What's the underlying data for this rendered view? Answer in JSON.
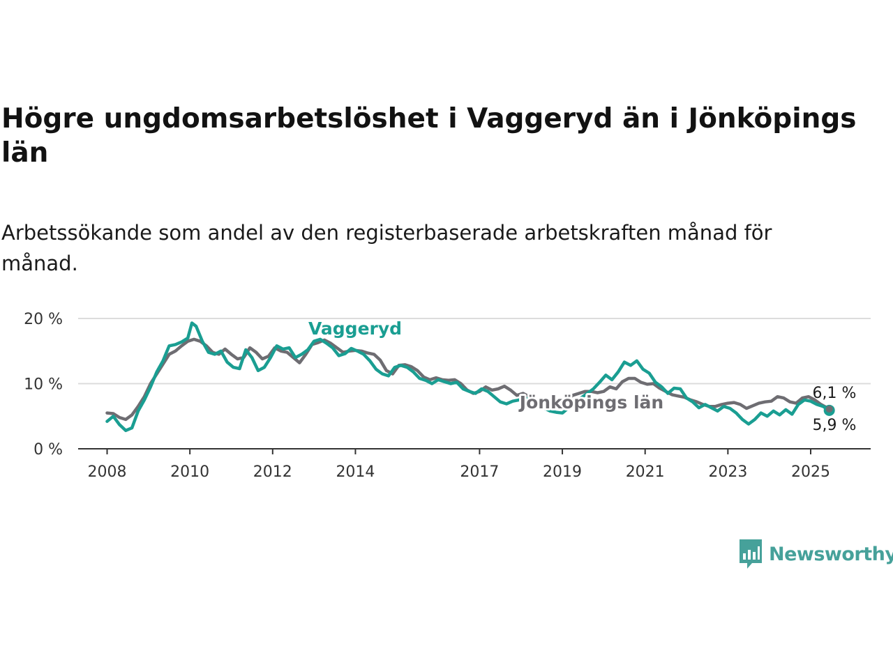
{
  "title": "Högre ungdomsarbetslöshet i Vaggeryd än i Jönköpings län",
  "subtitle": "Arbetssökande som andel av den registerbaserade arbetskraften månad för månad.",
  "brand": {
    "name": "Newsworthy",
    "color": "#46a19a"
  },
  "chart_data": {
    "type": "line",
    "ylim": [
      0,
      20
    ],
    "x_range": [
      2007.3,
      2026.45
    ],
    "y_ticks": [
      0,
      10,
      20
    ],
    "y_tick_labels": [
      "0 %",
      "10 %",
      "20 %"
    ],
    "x_ticks": [
      2008,
      2010,
      2012,
      2014,
      2017,
      2019,
      2021,
      2023,
      2025
    ],
    "x_tick_labels": [
      "2008",
      "2010",
      "2012",
      "2014",
      "2017",
      "2019",
      "2021",
      "2023",
      "2025"
    ],
    "grid": true,
    "legend": "inline labels",
    "series": [
      {
        "name": "Vaggeryd",
        "color": "#1a9e92",
        "label_text": "Vaggeryd",
        "end_label": "5,9 %",
        "points": [
          [
            2008.0,
            4.2
          ],
          [
            2008.15,
            5.0
          ],
          [
            2008.3,
            3.7
          ],
          [
            2008.45,
            2.8
          ],
          [
            2008.6,
            3.2
          ],
          [
            2008.75,
            5.8
          ],
          [
            2008.9,
            7.5
          ],
          [
            2009.05,
            9.5
          ],
          [
            2009.2,
            11.8
          ],
          [
            2009.35,
            13.5
          ],
          [
            2009.5,
            15.8
          ],
          [
            2009.65,
            16.0
          ],
          [
            2009.8,
            16.4
          ],
          [
            2009.95,
            17.0
          ],
          [
            2010.05,
            19.3
          ],
          [
            2010.15,
            18.8
          ],
          [
            2010.3,
            16.5
          ],
          [
            2010.45,
            14.8
          ],
          [
            2010.6,
            14.5
          ],
          [
            2010.75,
            15.0
          ],
          [
            2010.9,
            13.3
          ],
          [
            2011.05,
            12.5
          ],
          [
            2011.2,
            12.3
          ],
          [
            2011.35,
            15.2
          ],
          [
            2011.5,
            14.0
          ],
          [
            2011.65,
            12.0
          ],
          [
            2011.8,
            12.5
          ],
          [
            2011.95,
            14.0
          ],
          [
            2012.1,
            15.8
          ],
          [
            2012.25,
            15.3
          ],
          [
            2012.4,
            15.5
          ],
          [
            2012.55,
            14.0
          ],
          [
            2012.7,
            14.5
          ],
          [
            2012.85,
            15.2
          ],
          [
            2013.0,
            16.5
          ],
          [
            2013.15,
            16.8
          ],
          [
            2013.3,
            16.2
          ],
          [
            2013.45,
            15.5
          ],
          [
            2013.6,
            14.3
          ],
          [
            2013.75,
            14.6
          ],
          [
            2013.9,
            15.4
          ],
          [
            2014.05,
            15.0
          ],
          [
            2014.2,
            14.5
          ],
          [
            2014.35,
            13.5
          ],
          [
            2014.5,
            12.2
          ],
          [
            2014.65,
            11.5
          ],
          [
            2014.8,
            11.2
          ],
          [
            2014.95,
            12.5
          ],
          [
            2015.1,
            12.8
          ],
          [
            2015.25,
            12.5
          ],
          [
            2015.4,
            11.8
          ],
          [
            2015.55,
            10.8
          ],
          [
            2015.7,
            10.5
          ],
          [
            2015.85,
            10.0
          ],
          [
            2016.0,
            10.6
          ],
          [
            2016.15,
            10.3
          ],
          [
            2016.3,
            10.0
          ],
          [
            2016.45,
            10.2
          ],
          [
            2016.6,
            9.2
          ],
          [
            2016.75,
            8.8
          ],
          [
            2016.9,
            8.5
          ],
          [
            2017.05,
            9.2
          ],
          [
            2017.2,
            8.8
          ],
          [
            2017.35,
            8.0
          ],
          [
            2017.5,
            7.2
          ],
          [
            2017.65,
            6.9
          ],
          [
            2017.8,
            7.3
          ],
          [
            2017.95,
            7.5
          ],
          [
            2018.1,
            7.8
          ],
          [
            2018.25,
            7.4
          ],
          [
            2018.4,
            6.8
          ],
          [
            2018.55,
            6.3
          ],
          [
            2018.7,
            5.8
          ],
          [
            2018.85,
            5.6
          ],
          [
            2019.0,
            5.5
          ],
          [
            2019.15,
            6.3
          ],
          [
            2019.3,
            7.0
          ],
          [
            2019.45,
            7.8
          ],
          [
            2019.6,
            8.5
          ],
          [
            2019.75,
            9.2
          ],
          [
            2019.9,
            10.2
          ],
          [
            2020.05,
            11.3
          ],
          [
            2020.2,
            10.6
          ],
          [
            2020.35,
            11.8
          ],
          [
            2020.5,
            13.3
          ],
          [
            2020.65,
            12.8
          ],
          [
            2020.8,
            13.5
          ],
          [
            2020.95,
            12.2
          ],
          [
            2021.1,
            11.6
          ],
          [
            2021.25,
            10.2
          ],
          [
            2021.4,
            9.5
          ],
          [
            2021.55,
            8.5
          ],
          [
            2021.7,
            9.3
          ],
          [
            2021.85,
            9.2
          ],
          [
            2022.0,
            7.8
          ],
          [
            2022.15,
            7.2
          ],
          [
            2022.3,
            6.3
          ],
          [
            2022.45,
            6.8
          ],
          [
            2022.6,
            6.3
          ],
          [
            2022.75,
            5.8
          ],
          [
            2022.9,
            6.5
          ],
          [
            2023.05,
            6.2
          ],
          [
            2023.2,
            5.5
          ],
          [
            2023.35,
            4.5
          ],
          [
            2023.5,
            3.8
          ],
          [
            2023.65,
            4.5
          ],
          [
            2023.8,
            5.5
          ],
          [
            2023.95,
            5.0
          ],
          [
            2024.1,
            5.8
          ],
          [
            2024.25,
            5.2
          ],
          [
            2024.4,
            6.0
          ],
          [
            2024.55,
            5.3
          ],
          [
            2024.7,
            6.8
          ],
          [
            2024.85,
            7.5
          ],
          [
            2025.0,
            7.3
          ],
          [
            2025.15,
            6.8
          ],
          [
            2025.3,
            6.5
          ],
          [
            2025.45,
            5.9
          ]
        ]
      },
      {
        "name": "Jönköpings län",
        "color": "#6e6d72",
        "label_text": "Jönköpings län",
        "end_label": "6,1 %",
        "points": [
          [
            2008.0,
            5.5
          ],
          [
            2008.15,
            5.4
          ],
          [
            2008.3,
            4.8
          ],
          [
            2008.45,
            4.5
          ],
          [
            2008.6,
            5.2
          ],
          [
            2008.75,
            6.5
          ],
          [
            2008.9,
            8.0
          ],
          [
            2009.05,
            10.0
          ],
          [
            2009.2,
            11.5
          ],
          [
            2009.35,
            13.0
          ],
          [
            2009.5,
            14.5
          ],
          [
            2009.65,
            15.0
          ],
          [
            2009.8,
            15.8
          ],
          [
            2009.95,
            16.5
          ],
          [
            2010.1,
            16.8
          ],
          [
            2010.25,
            16.5
          ],
          [
            2010.4,
            15.8
          ],
          [
            2010.55,
            14.8
          ],
          [
            2010.7,
            14.5
          ],
          [
            2010.85,
            15.3
          ],
          [
            2011.0,
            14.5
          ],
          [
            2011.15,
            13.8
          ],
          [
            2011.3,
            14.0
          ],
          [
            2011.45,
            15.5
          ],
          [
            2011.6,
            14.8
          ],
          [
            2011.75,
            13.8
          ],
          [
            2011.9,
            14.2
          ],
          [
            2012.05,
            15.5
          ],
          [
            2012.2,
            15.0
          ],
          [
            2012.35,
            14.8
          ],
          [
            2012.5,
            14.0
          ],
          [
            2012.65,
            13.2
          ],
          [
            2012.8,
            14.5
          ],
          [
            2012.95,
            16.0
          ],
          [
            2013.1,
            16.3
          ],
          [
            2013.25,
            16.7
          ],
          [
            2013.4,
            16.2
          ],
          [
            2013.55,
            15.5
          ],
          [
            2013.7,
            14.8
          ],
          [
            2013.85,
            15.0
          ],
          [
            2014.0,
            15.1
          ],
          [
            2014.15,
            15.0
          ],
          [
            2014.3,
            14.7
          ],
          [
            2014.45,
            14.5
          ],
          [
            2014.6,
            13.6
          ],
          [
            2014.75,
            12.0
          ],
          [
            2014.9,
            11.5
          ],
          [
            2015.05,
            12.8
          ],
          [
            2015.2,
            12.9
          ],
          [
            2015.35,
            12.6
          ],
          [
            2015.5,
            12.0
          ],
          [
            2015.65,
            11.0
          ],
          [
            2015.8,
            10.6
          ],
          [
            2015.95,
            10.9
          ],
          [
            2016.1,
            10.6
          ],
          [
            2016.25,
            10.5
          ],
          [
            2016.4,
            10.6
          ],
          [
            2016.55,
            10.0
          ],
          [
            2016.7,
            9.0
          ],
          [
            2016.85,
            8.5
          ],
          [
            2017.0,
            8.8
          ],
          [
            2017.15,
            9.5
          ],
          [
            2017.3,
            9.0
          ],
          [
            2017.45,
            9.2
          ],
          [
            2017.6,
            9.6
          ],
          [
            2017.75,
            9.0
          ],
          [
            2017.9,
            8.2
          ],
          [
            2018.05,
            8.5
          ],
          [
            2018.2,
            8.0
          ],
          [
            2018.35,
            7.4
          ],
          [
            2018.5,
            6.8
          ],
          [
            2018.65,
            6.6
          ],
          [
            2018.8,
            6.7
          ],
          [
            2018.95,
            6.9
          ],
          [
            2019.1,
            7.5
          ],
          [
            2019.25,
            8.2
          ],
          [
            2019.4,
            8.5
          ],
          [
            2019.55,
            8.8
          ],
          [
            2019.7,
            8.8
          ],
          [
            2019.85,
            8.6
          ],
          [
            2020.0,
            8.8
          ],
          [
            2020.15,
            9.5
          ],
          [
            2020.3,
            9.2
          ],
          [
            2020.45,
            10.3
          ],
          [
            2020.6,
            10.8
          ],
          [
            2020.75,
            10.8
          ],
          [
            2020.9,
            10.2
          ],
          [
            2021.05,
            9.9
          ],
          [
            2021.2,
            10.0
          ],
          [
            2021.35,
            9.3
          ],
          [
            2021.5,
            8.8
          ],
          [
            2021.65,
            8.3
          ],
          [
            2021.8,
            8.1
          ],
          [
            2021.95,
            7.9
          ],
          [
            2022.1,
            7.5
          ],
          [
            2022.25,
            7.2
          ],
          [
            2022.4,
            6.8
          ],
          [
            2022.55,
            6.5
          ],
          [
            2022.7,
            6.5
          ],
          [
            2022.85,
            6.8
          ],
          [
            2023.0,
            7.0
          ],
          [
            2023.15,
            7.1
          ],
          [
            2023.3,
            6.8
          ],
          [
            2023.45,
            6.2
          ],
          [
            2023.6,
            6.6
          ],
          [
            2023.75,
            7.0
          ],
          [
            2023.9,
            7.2
          ],
          [
            2024.05,
            7.3
          ],
          [
            2024.2,
            8.0
          ],
          [
            2024.35,
            7.8
          ],
          [
            2024.5,
            7.2
          ],
          [
            2024.65,
            7.0
          ],
          [
            2024.8,
            7.8
          ],
          [
            2024.95,
            8.0
          ],
          [
            2025.1,
            7.5
          ],
          [
            2025.25,
            6.8
          ],
          [
            2025.45,
            6.1
          ]
        ]
      }
    ]
  }
}
